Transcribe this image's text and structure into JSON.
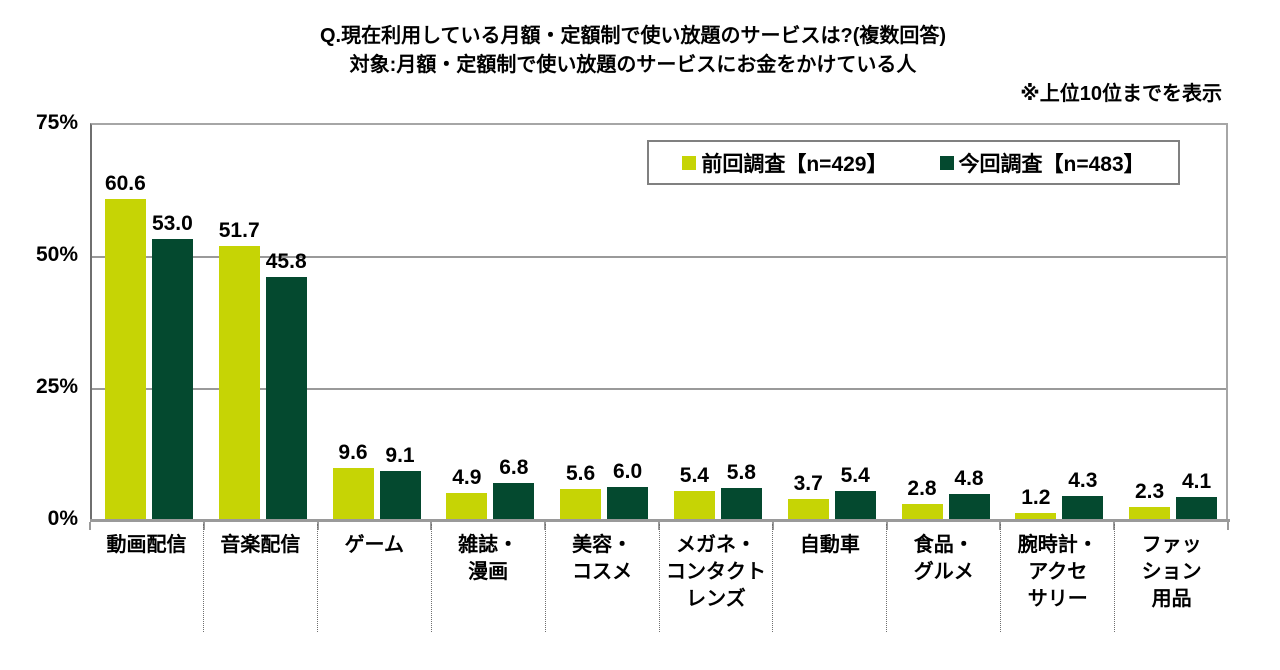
{
  "title": {
    "line1": "Q.現在利用している月額・定額制で使い放題のサービスは?(複数回答)",
    "line2": "対象:月額・定額制で使い放題のサービスにお金をかけている人"
  },
  "note": "※上位10位までを表示",
  "colors": {
    "previous_survey": "#c6d405",
    "current_survey": "#04492f",
    "axis_gray": "#9a9a9a"
  },
  "chart_data": {
    "type": "bar",
    "title": "Q.現在利用している月額・定額制で使い放題のサービスは?(複数回答)",
    "subtitle": "対象:月額・定額制で使い放題のサービスにお金をかけている人",
    "note": "※上位10位までを表示",
    "categories": [
      "動画配信",
      "音楽配信",
      "ゲーム",
      "雑誌・漫画",
      "美容・コスメ",
      "メガネ・コンタクトレンズ",
      "自動車",
      "食品・グルメ",
      "腕時計・アクセサリー",
      "ファッション用品"
    ],
    "category_label_lines": [
      [
        "動画配信"
      ],
      [
        "音楽配信"
      ],
      [
        "ゲーム"
      ],
      [
        "雑誌・",
        "漫画"
      ],
      [
        "美容・",
        "コスメ"
      ],
      [
        "メガネ・",
        "コンタクト",
        "レンズ"
      ],
      [
        "自動車"
      ],
      [
        "食品・",
        "グルメ"
      ],
      [
        "腕時計・",
        "アクセ",
        "サリー"
      ],
      [
        "ファッ",
        "ション",
        "用品"
      ]
    ],
    "series": [
      {
        "name": "前回調査【n=429】",
        "color": "#c6d405",
        "values": [
          60.6,
          51.7,
          9.6,
          4.9,
          5.6,
          5.4,
          3.7,
          2.8,
          1.2,
          2.3
        ]
      },
      {
        "name": "今回調査【n=483】",
        "color": "#04492f",
        "values": [
          53.0,
          45.8,
          9.1,
          6.8,
          6.0,
          5.8,
          5.4,
          4.8,
          4.3,
          4.1
        ]
      }
    ],
    "ylabel": "",
    "xlabel": "",
    "ylim": [
      0,
      75
    ],
    "yticks": [
      {
        "value": 75,
        "label": "75%"
      },
      {
        "value": 50,
        "label": "50%"
      },
      {
        "value": 25,
        "label": "25%"
      },
      {
        "value": 0,
        "label": "0%"
      }
    ],
    "grid": "horizontal",
    "legend_position": "top-right-inside",
    "value_labels": "one-decimal"
  }
}
